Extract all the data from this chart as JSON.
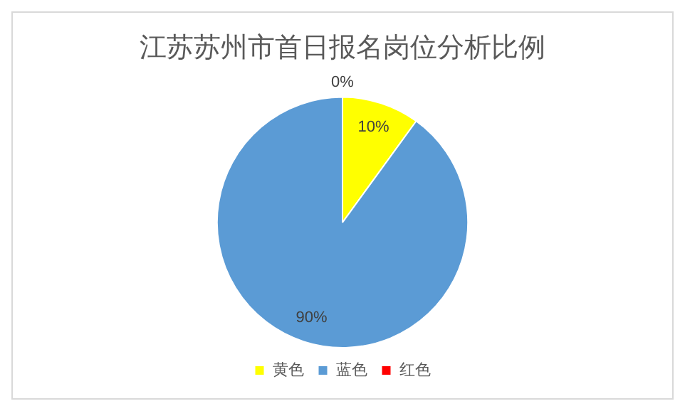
{
  "chart_data": {
    "type": "pie",
    "title": "江苏苏州市首日报名岗位分析比例",
    "categories": [
      "黄色",
      "蓝色",
      "红色"
    ],
    "values": [
      10,
      90,
      0
    ],
    "value_labels": [
      "10%",
      "90%",
      "0%"
    ],
    "colors": [
      "#ffff00",
      "#5b9bd5",
      "#ff0000"
    ],
    "legend": "bottom"
  }
}
